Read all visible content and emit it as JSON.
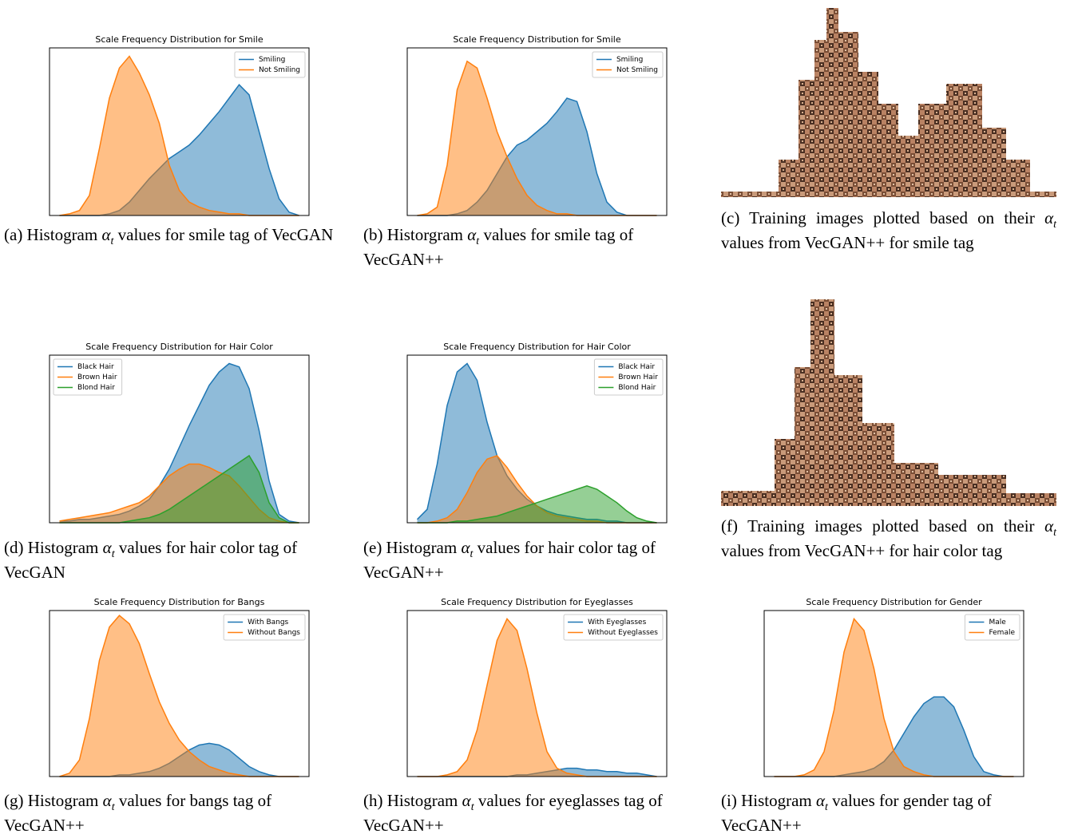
{
  "chart_data": [
    {
      "type": "area",
      "title": "Scale Frequency Distribution for Smile",
      "legend": "upper right",
      "x": [
        0,
        1,
        2,
        3,
        4,
        5,
        6,
        7,
        8,
        9,
        10,
        11,
        12,
        13,
        14,
        15,
        16,
        17,
        18,
        19,
        20,
        21,
        22,
        23,
        24
      ],
      "xlim": [
        -1,
        25
      ],
      "ylim": [
        0,
        100
      ],
      "series": [
        {
          "name": "Smiling",
          "color": "#1f77b4",
          "values": [
            0,
            0,
            0,
            0,
            0,
            1,
            3,
            8,
            15,
            22,
            28,
            34,
            38,
            42,
            48,
            55,
            62,
            70,
            78,
            72,
            50,
            28,
            10,
            2,
            0
          ]
        },
        {
          "name": "Not Smiling",
          "color": "#ff7f0e",
          "values": [
            0,
            1,
            3,
            12,
            40,
            70,
            88,
            95,
            85,
            72,
            55,
            30,
            15,
            8,
            5,
            3,
            2,
            1,
            1,
            0,
            0,
            0,
            0,
            0,
            0
          ]
        }
      ]
    },
    {
      "type": "area",
      "title": "Scale Frequency Distribution for Smile",
      "legend": "upper right",
      "x": [
        0,
        1,
        2,
        3,
        4,
        5,
        6,
        7,
        8,
        9,
        10,
        11,
        12,
        13,
        14,
        15,
        16,
        17,
        18,
        19,
        20,
        21,
        22,
        23,
        24
      ],
      "xlim": [
        -1,
        25
      ],
      "ylim": [
        0,
        100
      ],
      "series": [
        {
          "name": "Smiling",
          "color": "#1f77b4",
          "values": [
            0,
            0,
            0,
            0,
            1,
            3,
            8,
            15,
            25,
            35,
            42,
            45,
            50,
            55,
            62,
            70,
            68,
            50,
            25,
            8,
            2,
            0,
            0,
            0,
            0
          ]
        },
        {
          "name": "Not Smiling",
          "color": "#ff7f0e",
          "values": [
            0,
            1,
            5,
            30,
            75,
            92,
            88,
            70,
            50,
            35,
            22,
            12,
            6,
            3,
            1,
            1,
            0,
            0,
            0,
            0,
            0,
            0,
            0,
            0,
            0
          ]
        }
      ]
    },
    {
      "type": "area",
      "title": "Scale Frequency Distribution for Hair Color",
      "legend": "upper left",
      "x": [
        0,
        1,
        2,
        3,
        4,
        5,
        6,
        7,
        8,
        9,
        10,
        11,
        12,
        13,
        14,
        15,
        16,
        17,
        18,
        19,
        20,
        21,
        22,
        23,
        24
      ],
      "xlim": [
        -1,
        25
      ],
      "ylim": [
        0,
        100
      ],
      "series": [
        {
          "name": "Black Hair",
          "color": "#1f77b4",
          "values": [
            1,
            1,
            2,
            2,
            3,
            4,
            5,
            7,
            10,
            14,
            22,
            32,
            45,
            58,
            70,
            82,
            90,
            95,
            93,
            80,
            55,
            25,
            5,
            1,
            0
          ]
        },
        {
          "name": "Brown Hair",
          "color": "#ff7f0e",
          "values": [
            1,
            2,
            3,
            4,
            5,
            6,
            8,
            10,
            12,
            16,
            22,
            28,
            32,
            35,
            35,
            33,
            30,
            28,
            22,
            15,
            8,
            3,
            1,
            0,
            0
          ]
        },
        {
          "name": "Blond Hair",
          "color": "#2ca02c",
          "values": [
            0,
            0,
            0,
            0,
            0,
            0,
            0,
            1,
            2,
            3,
            5,
            8,
            12,
            16,
            20,
            24,
            28,
            32,
            36,
            40,
            30,
            12,
            3,
            0,
            0
          ]
        }
      ]
    },
    {
      "type": "area",
      "title": "Scale Frequency Distribution for Hair Color",
      "legend": "upper right",
      "x": [
        0,
        1,
        2,
        3,
        4,
        5,
        6,
        7,
        8,
        9,
        10,
        11,
        12,
        13,
        14,
        15,
        16,
        17,
        18,
        19,
        20,
        21,
        22,
        23,
        24
      ],
      "xlim": [
        -1,
        25
      ],
      "ylim": [
        0,
        100
      ],
      "series": [
        {
          "name": "Black Hair",
          "color": "#1f77b4",
          "values": [
            2,
            8,
            35,
            70,
            90,
            95,
            85,
            60,
            40,
            28,
            20,
            14,
            10,
            7,
            5,
            4,
            3,
            2,
            2,
            1,
            1,
            0,
            0,
            0,
            0
          ]
        },
        {
          "name": "Brown Hair",
          "color": "#ff7f0e",
          "values": [
            0,
            0,
            1,
            3,
            8,
            18,
            30,
            38,
            40,
            33,
            24,
            16,
            10,
            6,
            4,
            3,
            2,
            1,
            1,
            0,
            0,
            0,
            0,
            0,
            0
          ]
        },
        {
          "name": "Blond Hair",
          "color": "#2ca02c",
          "values": [
            0,
            0,
            0,
            0,
            1,
            1,
            2,
            3,
            4,
            6,
            8,
            10,
            12,
            14,
            16,
            18,
            20,
            22,
            20,
            16,
            12,
            7,
            3,
            1,
            0
          ]
        }
      ]
    },
    {
      "type": "area",
      "title": "Scale Frequency Distribution for Bangs",
      "legend": "upper right",
      "x": [
        0,
        1,
        2,
        3,
        4,
        5,
        6,
        7,
        8,
        9,
        10,
        11,
        12,
        13,
        14,
        15,
        16,
        17,
        18,
        19,
        20,
        21,
        22,
        23,
        24
      ],
      "xlim": [
        -1,
        25
      ],
      "ylim": [
        0,
        100
      ],
      "series": [
        {
          "name": "With Bangs",
          "color": "#1f77b4",
          "values": [
            0,
            0,
            0,
            0,
            0,
            0,
            1,
            1,
            2,
            3,
            5,
            8,
            12,
            16,
            19,
            20,
            19,
            16,
            11,
            6,
            3,
            1,
            0,
            0,
            0
          ]
        },
        {
          "name": "Without Bangs",
          "color": "#ff7f0e",
          "values": [
            0,
            2,
            10,
            35,
            70,
            90,
            97,
            92,
            80,
            62,
            45,
            32,
            22,
            15,
            10,
            6,
            4,
            2,
            1,
            0,
            0,
            0,
            0,
            0,
            0
          ]
        }
      ]
    },
    {
      "type": "area",
      "title": "Scale Frequency Distribution for Eyeglasses",
      "legend": "upper right",
      "x": [
        0,
        1,
        2,
        3,
        4,
        5,
        6,
        7,
        8,
        9,
        10,
        11,
        12,
        13,
        14,
        15,
        16,
        17,
        18,
        19,
        20,
        21,
        22,
        23,
        24
      ],
      "xlim": [
        -1,
        25
      ],
      "ylim": [
        0,
        100
      ],
      "series": [
        {
          "name": "With Eyeglasses",
          "color": "#1f77b4",
          "values": [
            0,
            0,
            0,
            0,
            0,
            0,
            0,
            0,
            0,
            0,
            1,
            1,
            2,
            3,
            4,
            5,
            5,
            4,
            4,
            3,
            3,
            2,
            2,
            1,
            0
          ]
        },
        {
          "name": "Without Eyeglasses",
          "color": "#ff7f0e",
          "values": [
            0,
            0,
            0,
            1,
            3,
            10,
            28,
            55,
            82,
            95,
            88,
            65,
            38,
            15,
            5,
            2,
            1,
            0,
            0,
            0,
            0,
            0,
            0,
            0,
            0
          ]
        }
      ]
    },
    {
      "type": "area",
      "title": "Scale Frequency Distribution for Gender",
      "legend": "upper right",
      "x": [
        0,
        1,
        2,
        3,
        4,
        5,
        6,
        7,
        8,
        9,
        10,
        11,
        12,
        13,
        14,
        15,
        16,
        17,
        18,
        19,
        20,
        21,
        22,
        23,
        24
      ],
      "xlim": [
        -1,
        25
      ],
      "ylim": [
        0,
        100
      ],
      "series": [
        {
          "name": "Male",
          "color": "#1f77b4",
          "values": [
            0,
            0,
            0,
            0,
            0,
            0,
            0,
            1,
            2,
            3,
            5,
            9,
            16,
            26,
            36,
            44,
            48,
            48,
            42,
            28,
            12,
            3,
            1,
            0,
            0
          ]
        },
        {
          "name": "Female",
          "color": "#ff7f0e",
          "values": [
            0,
            0,
            0,
            1,
            4,
            15,
            40,
            75,
            95,
            88,
            65,
            35,
            15,
            6,
            3,
            1,
            0,
            0,
            0,
            0,
            0,
            0,
            0,
            0,
            0
          ]
        }
      ]
    }
  ],
  "captions": [
    {
      "before": "(a) Histogram",
      "alpha": "α",
      "sub": "t",
      "after": "values for smile tag of VecGAN"
    },
    {
      "before": "(b) Historgram",
      "alpha": "α",
      "sub": "t",
      "after": "values for smile tag of VecGAN++"
    },
    {
      "before": "(c) Training images plotted based on their",
      "alpha": "α",
      "sub": "t",
      "after": "values from VecGAN++ for smile tag"
    },
    {
      "before": "(d) Histogram",
      "alpha": "α",
      "sub": "t",
      "after": "values for hair color tag of VecGAN"
    },
    {
      "before": "(e) Histogram",
      "alpha": "α",
      "sub": "t",
      "after": "values for hair color tag of VecGAN++"
    },
    {
      "before": "(f) Training images plotted based on their",
      "alpha": "α",
      "sub": "t",
      "after": "values from VecGAN++ for hair color tag"
    },
    {
      "before": "(g) Histogram",
      "alpha": "α",
      "sub": "t",
      "after": "values for bangs tag of VecGAN++"
    },
    {
      "before": "(h) Histogram",
      "alpha": "α",
      "sub": "t",
      "after": "values for eyeglasses tag of VecGAN++"
    },
    {
      "before": "(i) Histogram",
      "alpha": "α",
      "sub": "t",
      "after": "values for gender tag of VecGAN++"
    }
  ]
}
